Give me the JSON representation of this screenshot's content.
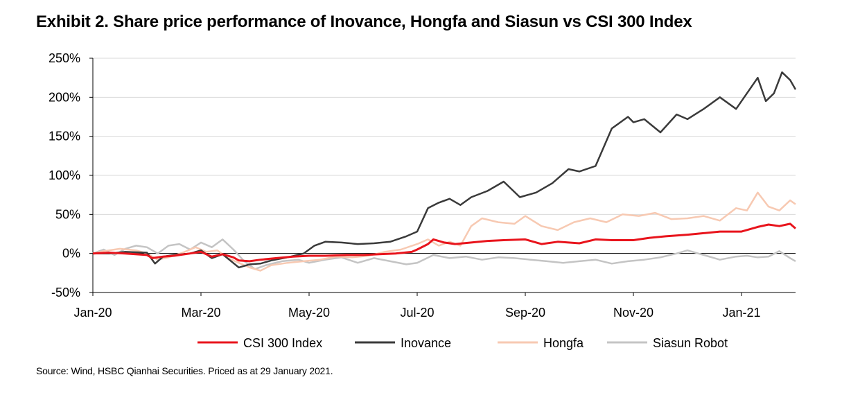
{
  "title": "Exhibit 2. Share price performance of Inovance, Hongfa and Siasun vs CSI 300 Index",
  "source": "Source: Wind, HSBC Qianhai Securities. Priced as at 29 January 2021.",
  "chart_data": {
    "type": "line",
    "title": "Exhibit 2. Share price performance of Inovance, Hongfa and Siasun vs CSI 300 Index",
    "xlabel": "",
    "ylabel": "",
    "ylim": [
      -50,
      250
    ],
    "y_ticks": [
      -50,
      0,
      50,
      100,
      150,
      200,
      250
    ],
    "y_tick_labels": [
      "-50%",
      "0%",
      "50%",
      "100%",
      "150%",
      "200%",
      "250%"
    ],
    "x_range": [
      0,
      13
    ],
    "x_ticks": [
      0,
      2,
      4,
      6,
      8,
      10,
      12
    ],
    "x_tick_labels": [
      "Jan-20",
      "Mar-20",
      "May-20",
      "Jul-20",
      "Sep-20",
      "Nov-20",
      "Jan-21"
    ],
    "grid": "horizontal",
    "legend_position": "bottom",
    "series": [
      {
        "name": "CSI 300 Index",
        "color": "#e8141c",
        "x": [
          0,
          0.3,
          0.6,
          1.0,
          1.1,
          1.3,
          1.5,
          1.8,
          2.0,
          2.2,
          2.4,
          2.6,
          2.7,
          2.9,
          3.1,
          3.4,
          3.7,
          4.0,
          4.3,
          4.7,
          5.0,
          5.3,
          5.6,
          5.9,
          6.0,
          6.2,
          6.3,
          6.5,
          6.7,
          7.0,
          7.3,
          7.6,
          8.0,
          8.3,
          8.6,
          9.0,
          9.3,
          9.6,
          10.0,
          10.3,
          10.6,
          11.0,
          11.3,
          11.6,
          12.0,
          12.3,
          12.5,
          12.7,
          12.9,
          13.0
        ],
        "values": [
          0,
          1,
          0,
          -2,
          -6,
          -4,
          -3,
          0,
          2,
          -4,
          -1,
          -5,
          -9,
          -10,
          -8,
          -6,
          -4,
          -3,
          -3,
          -2,
          -2,
          -1,
          0,
          2,
          5,
          12,
          18,
          14,
          12,
          14,
          16,
          17,
          18,
          12,
          15,
          13,
          18,
          17,
          17,
          20,
          22,
          24,
          26,
          28,
          28,
          34,
          37,
          35,
          38,
          32
        ]
      },
      {
        "name": "Inovance",
        "color": "#3a3a3a",
        "x": [
          0,
          0.3,
          0.6,
          1.0,
          1.15,
          1.3,
          1.5,
          1.8,
          2.0,
          2.2,
          2.4,
          2.7,
          2.9,
          3.1,
          3.3,
          3.6,
          3.9,
          4.1,
          4.3,
          4.6,
          4.9,
          5.2,
          5.5,
          5.8,
          6.0,
          6.2,
          6.4,
          6.6,
          6.8,
          7.0,
          7.3,
          7.6,
          7.9,
          8.2,
          8.5,
          8.8,
          9.0,
          9.3,
          9.6,
          9.9,
          10.0,
          10.2,
          10.5,
          10.8,
          11.0,
          11.3,
          11.6,
          11.9,
          12.1,
          12.3,
          12.45,
          12.6,
          12.75,
          12.9,
          13.0
        ],
        "values": [
          0,
          0,
          2,
          1,
          -13,
          -4,
          -2,
          0,
          4,
          -6,
          -1,
          -18,
          -14,
          -13,
          -9,
          -5,
          0,
          10,
          15,
          14,
          12,
          13,
          15,
          22,
          28,
          58,
          65,
          70,
          62,
          72,
          80,
          92,
          72,
          78,
          90,
          108,
          105,
          112,
          160,
          175,
          168,
          172,
          155,
          178,
          172,
          185,
          200,
          185,
          205,
          225,
          195,
          205,
          232,
          222,
          210
        ]
      },
      {
        "name": "Hongfa",
        "color": "#f7c9b2",
        "x": [
          0,
          0.2,
          0.5,
          0.8,
          1.0,
          1.2,
          1.4,
          1.7,
          1.9,
          2.1,
          2.3,
          2.5,
          2.7,
          2.9,
          3.1,
          3.3,
          3.6,
          3.9,
          4.2,
          4.5,
          4.8,
          5.1,
          5.4,
          5.7,
          6.0,
          6.2,
          6.4,
          6.6,
          6.8,
          7.0,
          7.2,
          7.5,
          7.8,
          8.0,
          8.3,
          8.6,
          8.9,
          9.2,
          9.5,
          9.8,
          10.1,
          10.4,
          10.7,
          11.0,
          11.3,
          11.6,
          11.9,
          12.1,
          12.3,
          12.5,
          12.7,
          12.9,
          13.0
        ],
        "values": [
          0,
          3,
          6,
          4,
          0,
          -8,
          -5,
          2,
          8,
          2,
          4,
          -6,
          -12,
          -18,
          -22,
          -15,
          -12,
          -10,
          -8,
          -4,
          -5,
          -3,
          2,
          5,
          12,
          18,
          10,
          15,
          10,
          35,
          45,
          40,
          38,
          48,
          35,
          30,
          40,
          45,
          40,
          50,
          48,
          52,
          44,
          45,
          48,
          42,
          58,
          55,
          78,
          60,
          55,
          68,
          63
        ]
      },
      {
        "name": "Siasun Robot",
        "color": "#c4c4c4",
        "x": [
          0,
          0.2,
          0.4,
          0.6,
          0.8,
          1.0,
          1.2,
          1.4,
          1.6,
          1.8,
          2.0,
          2.2,
          2.4,
          2.6,
          2.8,
          3.0,
          3.2,
          3.5,
          3.8,
          4.0,
          4.3,
          4.6,
          4.9,
          5.2,
          5.5,
          5.8,
          6.0,
          6.3,
          6.6,
          6.9,
          7.2,
          7.5,
          7.8,
          8.1,
          8.4,
          8.7,
          9.0,
          9.3,
          9.6,
          9.9,
          10.2,
          10.5,
          10.8,
          11.0,
          11.3,
          11.6,
          11.9,
          12.1,
          12.3,
          12.5,
          12.7,
          12.9,
          13.0
        ],
        "values": [
          0,
          5,
          -2,
          6,
          10,
          8,
          0,
          10,
          12,
          5,
          14,
          8,
          18,
          5,
          -10,
          -20,
          -15,
          -10,
          -8,
          -12,
          -8,
          -5,
          -12,
          -6,
          -10,
          -14,
          -12,
          -2,
          -6,
          -4,
          -8,
          -5,
          -6,
          -8,
          -10,
          -12,
          -10,
          -8,
          -13,
          -10,
          -8,
          -5,
          0,
          4,
          -2,
          -8,
          -4,
          -3,
          -5,
          -4,
          3,
          -6,
          -10
        ]
      }
    ]
  }
}
